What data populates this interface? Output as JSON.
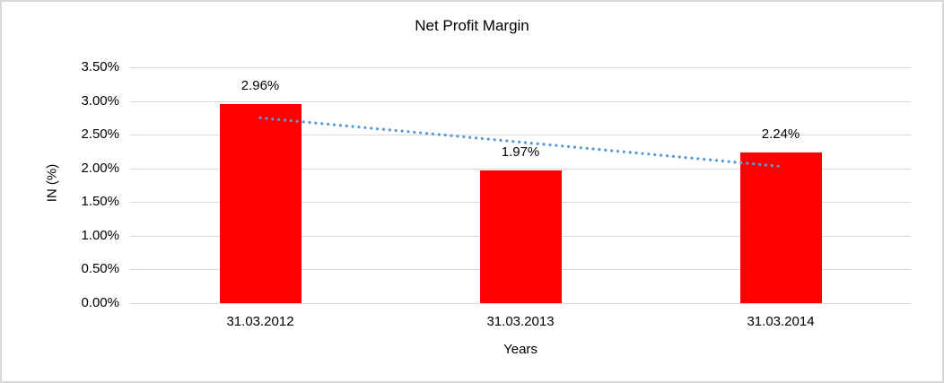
{
  "chart_data": {
    "type": "bar",
    "title": "Net Profit Margin",
    "categories": [
      "31.03.2012",
      "31.03.2013",
      "31.03.2014"
    ],
    "values": [
      2.96,
      1.97,
      2.24
    ],
    "data_labels": [
      "2.96%",
      "1.97%",
      "2.24%"
    ],
    "xlabel": "Years",
    "ylabel": "IN (%)",
    "ylim": [
      0,
      3.5
    ],
    "ytick_step": 0.5,
    "ytick_labels": [
      "0.00%",
      "0.50%",
      "1.00%",
      "1.50%",
      "2.00%",
      "2.50%",
      "3.00%",
      "3.50%"
    ],
    "grid": true,
    "legend_position": "none",
    "trendline": {
      "type": "linear",
      "style": "dotted",
      "series": "values"
    }
  },
  "colors": {
    "bar": "#ff0000",
    "trendline": "#5b9bd5",
    "gridline": "#d9d9d9",
    "border": "#d9d9d9",
    "text": "#000000",
    "background": "#ffffff"
  }
}
